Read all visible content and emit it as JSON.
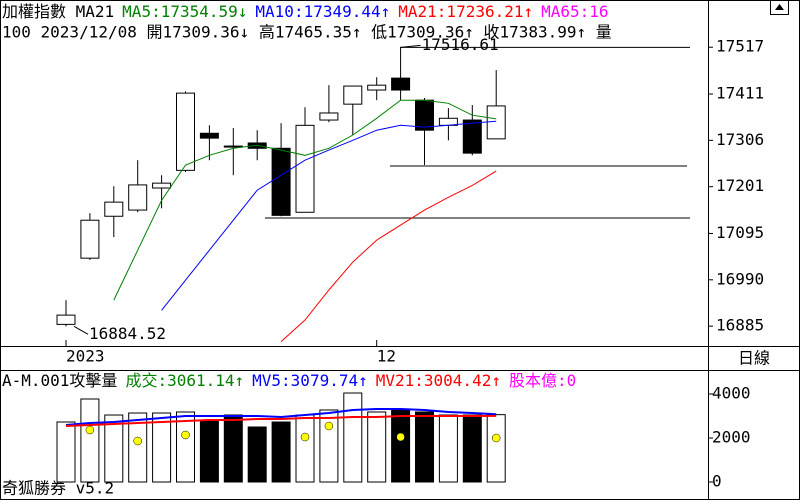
{
  "chart_data": [
    {
      "type": "candlestick",
      "title": "加權指數 MA21",
      "subtitle": "100 2023/12/08 開17309.36↓ 高17465.35↑ 低17309.36↑ 收17383.99↑ 量",
      "extra_legend": {
        "text": "MA65:16",
        "color": "#ff00ff"
      },
      "period": "日線",
      "categories": [
        "2023",
        null,
        null,
        null,
        null,
        null,
        null,
        null,
        null,
        null,
        null,
        null,
        null,
        "12",
        null,
        null,
        null,
        null,
        null
      ],
      "open": [
        16889,
        17039,
        17134,
        17148,
        17198,
        17238,
        17322,
        17293,
        17300,
        17288,
        17143,
        17352,
        17388,
        17420,
        17447,
        17397,
        17340,
        17352,
        17309.36
      ],
      "high": [
        16944,
        17141,
        17202,
        17261,
        17227,
        17417,
        17340,
        17334,
        17329,
        17345,
        17381,
        17431,
        17429,
        17449,
        17516.61,
        17402,
        17379,
        17386,
        17465.35
      ],
      "low": [
        16884.52,
        17035,
        17087,
        17143,
        17152,
        17234,
        17261,
        17227,
        17261,
        17134,
        17143,
        17347,
        17318,
        17397,
        17397,
        17250,
        17306,
        17272,
        17309.36
      ],
      "close": [
        16910,
        17125,
        17166,
        17205,
        17209,
        17413,
        17311,
        17291,
        17288,
        17136,
        17340,
        17368,
        17429,
        17431,
        17420,
        17329,
        17356,
        17277,
        17383.99
      ],
      "up_color": "#ffffff",
      "down_color": "#000000",
      "series": [
        {
          "name": "MA5:17354.59↓",
          "color": "#008000",
          "values": [
            null,
            null,
            16944,
            17057,
            17170,
            17250,
            17272,
            17288,
            17295,
            17284,
            17272,
            17288,
            17318,
            17356,
            17397,
            17397,
            17390,
            17363,
            17354.59
          ]
        },
        {
          "name": "MA10:17349.44↑",
          "color": "#0000ff",
          "values": [
            null,
            null,
            null,
            null,
            16921,
            16989,
            17057,
            17125,
            17193,
            17227,
            17261,
            17284,
            17306,
            17329,
            17340,
            17336,
            17340,
            17345,
            17349.44
          ]
        },
        {
          "name": "MA21:17236.21↑",
          "color": "#ff0000",
          "values": [
            null,
            null,
            null,
            null,
            null,
            null,
            null,
            null,
            null,
            16850,
            16899,
            16967,
            17030,
            17080,
            17114,
            17148,
            17177,
            17204,
            17236.21
          ]
        }
      ],
      "annotations": [
        {
          "value": 17516.61,
          "label": "17516.61"
        },
        {
          "value": 16884.52,
          "label": "16884.52"
        }
      ],
      "reference_lines": [
        17516.61,
        17248,
        17130
      ],
      "ylim": [
        16840,
        17624
      ],
      "yticks": [
        17517,
        17411,
        17306,
        17201,
        17095,
        16990,
        16885
      ]
    },
    {
      "type": "bar",
      "title": "A-M.001攻擊量",
      "name": "成交:3061.14↑",
      "name_color": "#008000",
      "values": [
        2727,
        3773,
        3045,
        3136,
        3136,
        3182,
        2818,
        3045,
        2500,
        2727,
        3045,
        3273,
        4045,
        3182,
        3273,
        3182,
        3045,
        3045,
        3061.14
      ],
      "series": [
        {
          "name": "MV5:3079.74↑",
          "color": "#0000ff",
          "values": [
            2591,
            2682,
            2727,
            2818,
            2909,
            3000,
            3000,
            3000,
            3000,
            2955,
            3045,
            3136,
            3273,
            3318,
            3318,
            3273,
            3182,
            3136,
            3079.74
          ]
        },
        {
          "name": "MV21:3004.42↑",
          "color": "#ff0000",
          "values": [
            2545,
            2591,
            2636,
            2682,
            2727,
            2773,
            2818,
            2818,
            2864,
            2864,
            2909,
            2909,
            2955,
            2955,
            3000,
            3000,
            3000,
            3000,
            3004.42
          ]
        }
      ],
      "markers": {
        "color": "#ffff00",
        "values": [
          null,
          2364,
          null,
          1864,
          null,
          2136,
          null,
          null,
          null,
          null,
          2045,
          2545,
          null,
          null,
          2045,
          null,
          null,
          null,
          2000
        ]
      },
      "extra_legend": {
        "text": "股本億:0",
        "color": "#ff00ff"
      },
      "ylim": [
        -727,
        5000
      ],
      "yticks": [
        4000,
        2000,
        0
      ]
    }
  ],
  "footer": "奇狐勝券 v5.2"
}
